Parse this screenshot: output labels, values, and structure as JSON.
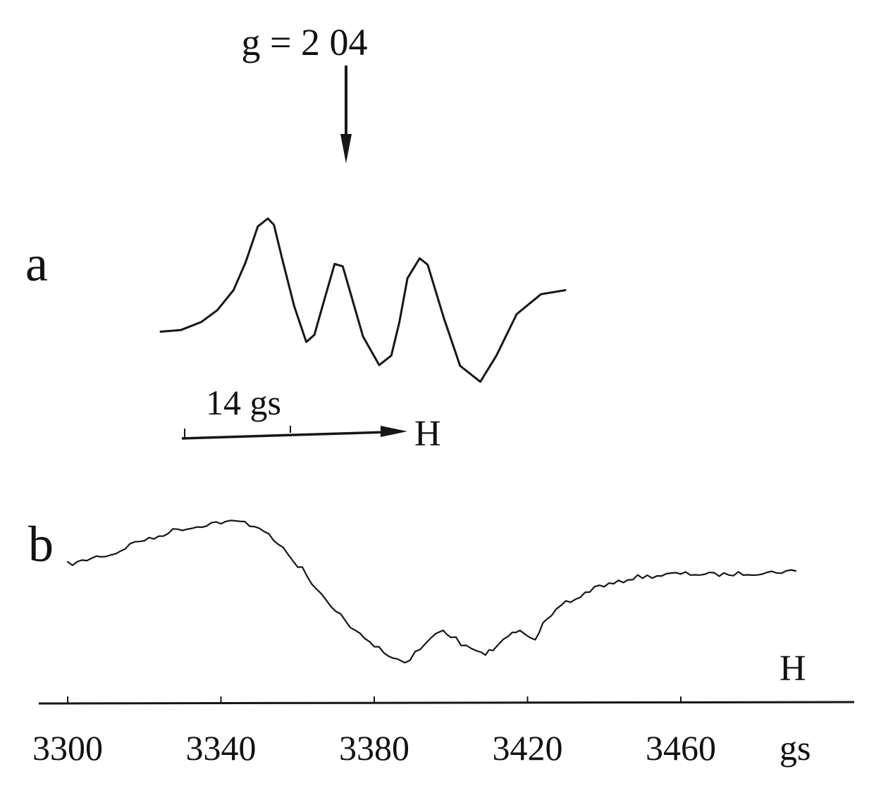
{
  "chart_data": [
    {
      "type": "line",
      "panel_label": "a",
      "annotation": "g = 2 04",
      "scale_bar": "14 gs",
      "field_label": "H",
      "series": [
        {
          "x": [
            0.0,
            0.05,
            0.1,
            0.14,
            0.18,
            0.21,
            0.24,
            0.265,
            0.28,
            0.3,
            0.33,
            0.36,
            0.38,
            0.4,
            0.43,
            0.45,
            0.47,
            0.5,
            0.54,
            0.57,
            0.59,
            0.61,
            0.64,
            0.66,
            0.7,
            0.74,
            0.79,
            0.83,
            0.88,
            0.94,
            1.0
          ],
          "y": [
            -0.42,
            -0.4,
            -0.3,
            -0.15,
            0.1,
            0.45,
            0.9,
            1.0,
            0.92,
            0.5,
            -0.1,
            -0.55,
            -0.46,
            -0.1,
            0.43,
            0.4,
            0.05,
            -0.48,
            -0.84,
            -0.72,
            -0.3,
            0.25,
            0.5,
            0.42,
            -0.25,
            -0.85,
            -1.05,
            -0.72,
            -0.2,
            0.05,
            0.1
          ]
        }
      ]
    },
    {
      "type": "line",
      "panel_label": "b",
      "field_label": "H",
      "xlabel": "gs",
      "xticks": [
        3300,
        3340,
        3380,
        3420,
        3460
      ],
      "xlim": [
        3300,
        3500
      ],
      "series": [
        {
          "x": [
            3300,
            3310,
            3320,
            3330,
            3340,
            3345,
            3350,
            3355,
            3360,
            3365,
            3370,
            3375,
            3380,
            3385,
            3388,
            3392,
            3396,
            3398,
            3400,
            3404,
            3408,
            3411,
            3415,
            3418,
            3420,
            3422,
            3425,
            3430,
            3440,
            3450,
            3460,
            3470,
            3480,
            3490
          ],
          "y": [
            0.4,
            0.52,
            0.74,
            0.9,
            0.99,
            1.0,
            0.92,
            0.68,
            0.38,
            0.05,
            -0.28,
            -0.55,
            -0.75,
            -0.93,
            -0.99,
            -0.8,
            -0.6,
            -0.55,
            -0.62,
            -0.78,
            -0.88,
            -0.82,
            -0.62,
            -0.52,
            -0.6,
            -0.66,
            -0.4,
            -0.14,
            0.1,
            0.22,
            0.26,
            0.25,
            0.27,
            0.3
          ]
        }
      ]
    }
  ]
}
